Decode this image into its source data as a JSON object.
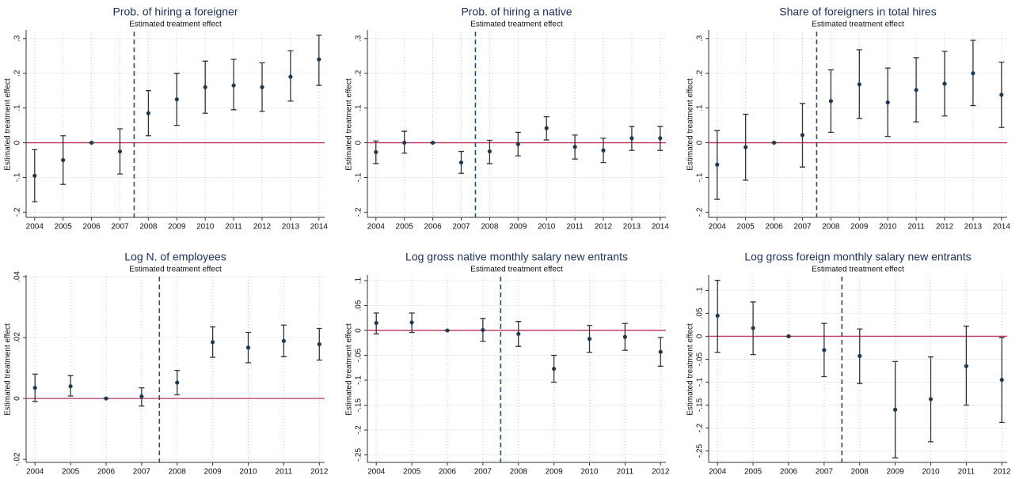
{
  "chart_data": [
    {
      "type": "errorbar",
      "title": "Prob. of hiring a foreigner",
      "subtitle": "Estimated treatment effect",
      "y_label": "Estimated treatment effect",
      "x": [
        2004,
        2005,
        2006,
        2007,
        2008,
        2009,
        2010,
        2011,
        2012,
        2013,
        2014
      ],
      "values": [
        -0.095,
        -0.05,
        0,
        -0.025,
        0.085,
        0.125,
        0.16,
        0.165,
        0.16,
        0.19,
        0.24
      ],
      "ci_low": [
        -0.17,
        -0.12,
        0,
        -0.09,
        0.02,
        0.05,
        0.085,
        0.095,
        0.09,
        0.12,
        0.165
      ],
      "ci_high": [
        -0.02,
        0.02,
        0,
        0.04,
        0.15,
        0.2,
        0.235,
        0.24,
        0.23,
        0.265,
        0.31
      ],
      "xlim": [
        2003.7,
        2014.2
      ],
      "xticks": [
        2004,
        2005,
        2006,
        2007,
        2008,
        2009,
        2010,
        2011,
        2012,
        2013,
        2014
      ],
      "ylim": [
        -0.215,
        0.32
      ],
      "yticks": [
        {
          "value": -0.2,
          "label": "-.2"
        },
        {
          "value": -0.1,
          "label": "-.1"
        },
        0,
        {
          "value": 0.1,
          "label": ".1"
        },
        {
          "value": 0.2,
          "label": ".2"
        },
        {
          "value": 0.3,
          "label": ".3"
        }
      ],
      "hline": 0,
      "vline": 2007.5,
      "color": "#1f3a52",
      "bar_color": "#333333",
      "hline_color": "#c0345e",
      "vline_color": "#1f4e79",
      "grid": true
    },
    {
      "type": "errorbar",
      "title": "Prob. of hiring a native",
      "subtitle": "Estimated treatment effect",
      "y_label": "Estimated treatment effect",
      "x": [
        2004,
        2005,
        2006,
        2007,
        2008,
        2009,
        2010,
        2011,
        2012,
        2013,
        2014
      ],
      "values": [
        -0.027,
        0,
        0,
        -0.057,
        -0.025,
        -0.004,
        0.042,
        -0.012,
        -0.022,
        0.013,
        0.013
      ],
      "ci_low": [
        -0.06,
        -0.03,
        0,
        -0.088,
        -0.06,
        -0.038,
        0.008,
        -0.047,
        -0.057,
        -0.022,
        -0.022
      ],
      "ci_high": [
        0.005,
        0.033,
        0,
        -0.025,
        0.007,
        0.03,
        0.075,
        0.022,
        0.013,
        0.047,
        0.047
      ],
      "xlim": [
        2003.7,
        2014.2
      ],
      "xticks": [
        2004,
        2005,
        2006,
        2007,
        2008,
        2009,
        2010,
        2011,
        2012,
        2013,
        2014
      ],
      "ylim": [
        -0.215,
        0.32
      ],
      "yticks": [
        {
          "value": -0.2,
          "label": "-.2"
        },
        {
          "value": -0.1,
          "label": "-.1"
        },
        0,
        {
          "value": 0.1,
          "label": ".1"
        },
        {
          "value": 0.2,
          "label": ".2"
        },
        {
          "value": 0.3,
          "label": ".3"
        }
      ],
      "hline": 0,
      "vline": 2007.5,
      "color": "#1f3a52",
      "bar_color": "#333333",
      "hline_color": "#c0345e",
      "vline_color": "#1f4e79",
      "grid": true
    },
    {
      "type": "errorbar",
      "title": "Share of foreigners in total hires",
      "subtitle": "Estimated treatment effect",
      "y_label": "Estimated treatment effect",
      "x": [
        2004,
        2005,
        2006,
        2007,
        2008,
        2009,
        2010,
        2011,
        2012,
        2013,
        2014
      ],
      "values": [
        -0.063,
        -0.013,
        0,
        0.022,
        0.12,
        0.168,
        0.116,
        0.152,
        0.17,
        0.2,
        0.138
      ],
      "ci_low": [
        -0.163,
        -0.108,
        0,
        -0.07,
        0.03,
        0.07,
        0.018,
        0.06,
        0.077,
        0.107,
        0.044
      ],
      "ci_high": [
        0.035,
        0.082,
        0,
        0.113,
        0.21,
        0.268,
        0.215,
        0.245,
        0.263,
        0.295,
        0.232
      ],
      "xlim": [
        2003.7,
        2014.2
      ],
      "xticks": [
        2004,
        2005,
        2006,
        2007,
        2008,
        2009,
        2010,
        2011,
        2012,
        2013,
        2014
      ],
      "ylim": [
        -0.215,
        0.32
      ],
      "yticks": [
        {
          "value": -0.2,
          "label": "-.2"
        },
        {
          "value": -0.1,
          "label": "-.1"
        },
        0,
        {
          "value": 0.1,
          "label": ".1"
        },
        {
          "value": 0.2,
          "label": ".2"
        },
        {
          "value": 0.3,
          "label": ".3"
        }
      ],
      "hline": 0,
      "vline": 2007.5,
      "color": "#1f3a52",
      "bar_color": "#333333",
      "hline_color": "#c0345e",
      "vline_color": "#1f4e79",
      "grid": true
    },
    {
      "type": "errorbar",
      "title": "Log N. of employees",
      "subtitle": "Estimated treatment effect",
      "y_label": "Estimated treatment effect",
      "x": [
        2004,
        2005,
        2006,
        2007,
        2008,
        2009,
        2010,
        2011,
        2012
      ],
      "values": [
        0.0035,
        0.004,
        0,
        0.0007,
        0.0052,
        0.0185,
        0.0167,
        0.0189,
        0.0178
      ],
      "ci_low": [
        -0.001,
        0.0008,
        0,
        -0.0025,
        0.0012,
        0.0135,
        0.0117,
        0.0137,
        0.0126
      ],
      "ci_high": [
        0.008,
        0.0075,
        0,
        0.0035,
        0.0092,
        0.0235,
        0.0217,
        0.0241,
        0.023
      ],
      "xlim": [
        2003.75,
        2012.15
      ],
      "xticks": [
        2004,
        2005,
        2006,
        2007,
        2008,
        2009,
        2010,
        2011,
        2012
      ],
      "ylim": [
        -0.021,
        0.04
      ],
      "yticks": [
        {
          "value": -0.02,
          "label": "-.02"
        },
        0,
        {
          "value": 0.02,
          "label": ".02"
        },
        {
          "value": 0.04,
          "label": ".04"
        }
      ],
      "hline": 0,
      "vline": 2007.5,
      "color": "#1f3a52",
      "bar_color": "#333333",
      "hline_color": "#c0345e",
      "vline_color": "#1f4e79",
      "grid": true
    },
    {
      "type": "errorbar",
      "title": "Log gross native monthly salary new entrants",
      "subtitle": "Estimated treatment effect",
      "y_label": "Estimated treatment effect",
      "x": [
        2004,
        2005,
        2006,
        2007,
        2008,
        2009,
        2010,
        2011,
        2012
      ],
      "values": [
        0.015,
        0.016,
        0,
        0.001,
        -0.007,
        -0.077,
        -0.017,
        -0.013,
        -0.043
      ],
      "ci_low": [
        -0.007,
        -0.004,
        0,
        -0.022,
        -0.032,
        -0.104,
        -0.044,
        -0.04,
        -0.072
      ],
      "ci_high": [
        0.035,
        0.035,
        0,
        0.024,
        0.018,
        -0.05,
        0.01,
        0.014,
        -0.014
      ],
      "xlim": [
        2003.75,
        2012.15
      ],
      "xticks": [
        2004,
        2005,
        2006,
        2007,
        2008,
        2009,
        2010,
        2011,
        2012
      ],
      "ylim": [
        -0.265,
        0.108
      ],
      "yticks": [
        {
          "value": -0.25,
          "label": "-.25"
        },
        {
          "value": -0.2,
          "label": "-.2"
        },
        {
          "value": -0.15,
          "label": "-.15"
        },
        {
          "value": -0.1,
          "label": "-.1"
        },
        {
          "value": -0.05,
          "label": "-.05"
        },
        0,
        {
          "value": 0.05,
          "label": ".05"
        },
        {
          "value": 0.1,
          "label": ".1"
        }
      ],
      "hline": 0,
      "vline": 2007.5,
      "color": "#1f3a52",
      "bar_color": "#333333",
      "hline_color": "#c0345e",
      "vline_color": "#1f4e79",
      "grid": true
    },
    {
      "type": "errorbar",
      "title": "Log gross foreign monthly salary new entrants",
      "subtitle": "Estimated treatment effect",
      "y_label": "Estimated treatment effect",
      "x": [
        2004,
        2005,
        2006,
        2007,
        2008,
        2009,
        2010,
        2011,
        2012
      ],
      "values": [
        0.045,
        0.018,
        0,
        -0.03,
        -0.043,
        -0.16,
        -0.137,
        -0.065,
        -0.095
      ],
      "ci_low": [
        -0.035,
        -0.04,
        0,
        -0.088,
        -0.103,
        -0.265,
        -0.23,
        -0.15,
        -0.188
      ],
      "ci_high": [
        0.122,
        0.075,
        0,
        0.028,
        0.016,
        -0.055,
        -0.045,
        0.022,
        -0.003
      ],
      "xlim": [
        2003.75,
        2012.15
      ],
      "xticks": [
        2004,
        2005,
        2006,
        2007,
        2008,
        2009,
        2010,
        2011,
        2012
      ],
      "ylim": [
        -0.275,
        0.13
      ],
      "yticks": [
        {
          "value": -0.25,
          "label": "-.25"
        },
        {
          "value": -0.2,
          "label": "-.2"
        },
        {
          "value": -0.15,
          "label": "-.15"
        },
        {
          "value": -0.1,
          "label": "-.1"
        },
        {
          "value": -0.05,
          "label": "-.05"
        },
        0,
        {
          "value": 0.05,
          "label": ".05"
        },
        {
          "value": 0.1,
          "label": ".1"
        }
      ],
      "hline": 0,
      "vline": 2007.5,
      "color": "#1f3a52",
      "bar_color": "#333333",
      "hline_color": "#c0345e",
      "vline_color": "#1f4e79",
      "grid": true
    }
  ]
}
